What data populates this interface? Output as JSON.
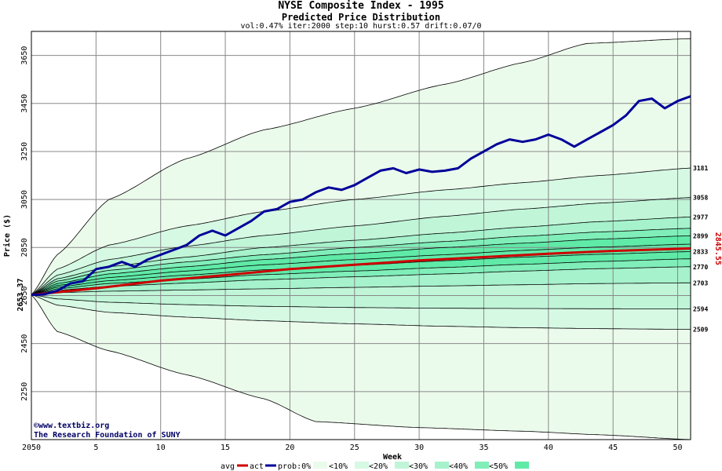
{
  "chart_data": {
    "type": "line",
    "title": "NYSE Composite Index - 1995",
    "subtitle": "Predicted Price Distribution",
    "params": "vol:0.47% iter:2000 step:10 hurst:0.57 drift:0.07/0",
    "xlabel": "Week",
    "ylabel": "Price ($)",
    "xlim": [
      0,
      51
    ],
    "ylim": [
      2050,
      3750
    ],
    "x_ticks": [
      "5",
      "10",
      "15",
      "20",
      "25",
      "30",
      "35",
      "40",
      "45",
      "50"
    ],
    "y_ticks": [
      "2050",
      "2250",
      "2450",
      "2650",
      "2850",
      "3050",
      "3250",
      "3450",
      "3650"
    ],
    "start_label": "2653.37",
    "end_label": "2845.55",
    "grid": true,
    "colors": {
      "avg": "#cc0000",
      "act": "#000099",
      "band_0": "#ebfbeb",
      "band_10": "#d6f9e4",
      "band_20": "#c0f5d8",
      "band_30": "#a6f2cc",
      "band_40": "#80eeb9",
      "band_50": "#5feaa7"
    },
    "percentile_curves": [
      {
        "end": 3720,
        "control": [
          [
            2,
            2820
          ],
          [
            6,
            3050
          ],
          [
            12,
            3220
          ],
          [
            18,
            3340
          ],
          [
            25,
            3430
          ],
          [
            32,
            3530
          ],
          [
            38,
            3620
          ],
          [
            43,
            3700
          ],
          [
            51,
            3720
          ]
        ]
      },
      {
        "end": 3181,
        "control": [
          [
            2,
            2760
          ],
          [
            6,
            2860
          ],
          [
            12,
            2940
          ],
          [
            18,
            3000
          ],
          [
            25,
            3050
          ],
          [
            32,
            3090
          ],
          [
            38,
            3120
          ],
          [
            44,
            3150
          ],
          [
            51,
            3181
          ]
        ]
      },
      {
        "end": 3058,
        "control": [
          [
            2,
            2735
          ],
          [
            6,
            2800
          ],
          [
            12,
            2855
          ],
          [
            18,
            2900
          ],
          [
            25,
            2940
          ],
          [
            32,
            2980
          ],
          [
            38,
            3010
          ],
          [
            44,
            3035
          ],
          [
            51,
            3058
          ]
        ]
      },
      {
        "end": 2977,
        "control": [
          [
            2,
            2720
          ],
          [
            6,
            2770
          ],
          [
            12,
            2810
          ],
          [
            18,
            2850
          ],
          [
            25,
            2880
          ],
          [
            32,
            2910
          ],
          [
            38,
            2935
          ],
          [
            44,
            2958
          ],
          [
            51,
            2977
          ]
        ]
      },
      {
        "end": 2930,
        "control": [
          [
            2,
            2710
          ],
          [
            6,
            2755
          ],
          [
            12,
            2790
          ],
          [
            18,
            2820
          ],
          [
            25,
            2850
          ],
          [
            32,
            2875
          ],
          [
            38,
            2897
          ],
          [
            44,
            2915
          ],
          [
            51,
            2930
          ]
        ]
      },
      {
        "end": 2899,
        "control": [
          [
            2,
            2700
          ],
          [
            6,
            2740
          ],
          [
            12,
            2770
          ],
          [
            18,
            2800
          ],
          [
            25,
            2825
          ],
          [
            32,
            2850
          ],
          [
            38,
            2868
          ],
          [
            44,
            2885
          ],
          [
            51,
            2899
          ]
        ]
      },
      {
        "end": 2864,
        "control": [
          [
            2,
            2692
          ],
          [
            6,
            2725
          ],
          [
            12,
            2752
          ],
          [
            18,
            2778
          ],
          [
            25,
            2800
          ],
          [
            32,
            2820
          ],
          [
            38,
            2838
          ],
          [
            44,
            2852
          ],
          [
            51,
            2864
          ]
        ]
      },
      {
        "end": 2833,
        "control": [
          [
            2,
            2685
          ],
          [
            6,
            2712
          ],
          [
            12,
            2735
          ],
          [
            18,
            2757
          ],
          [
            25,
            2776
          ],
          [
            32,
            2795
          ],
          [
            38,
            2810
          ],
          [
            44,
            2822
          ],
          [
            51,
            2833
          ]
        ]
      },
      {
        "end": 2803,
        "control": [
          [
            2,
            2678
          ],
          [
            6,
            2700
          ],
          [
            12,
            2718
          ],
          [
            18,
            2737
          ],
          [
            25,
            2752
          ],
          [
            32,
            2767
          ],
          [
            38,
            2780
          ],
          [
            44,
            2792
          ],
          [
            51,
            2803
          ]
        ]
      },
      {
        "end": 2770,
        "control": [
          [
            2,
            2672
          ],
          [
            6,
            2688
          ],
          [
            12,
            2702
          ],
          [
            18,
            2716
          ],
          [
            25,
            2728
          ],
          [
            32,
            2740
          ],
          [
            38,
            2752
          ],
          [
            44,
            2762
          ],
          [
            51,
            2770
          ]
        ]
      },
      {
        "end": 2703,
        "control": [
          [
            2,
            2662
          ],
          [
            6,
            2668
          ],
          [
            12,
            2673
          ],
          [
            18,
            2678
          ],
          [
            25,
            2684
          ],
          [
            32,
            2690
          ],
          [
            38,
            2695
          ],
          [
            44,
            2700
          ],
          [
            51,
            2703
          ]
        ]
      },
      {
        "end": 2594,
        "control": [
          [
            2,
            2636
          ],
          [
            6,
            2622
          ],
          [
            12,
            2612
          ],
          [
            18,
            2605
          ],
          [
            25,
            2600
          ],
          [
            32,
            2597
          ],
          [
            38,
            2596
          ],
          [
            44,
            2595
          ],
          [
            51,
            2594
          ]
        ]
      },
      {
        "end": 2509,
        "control": [
          [
            2,
            2610
          ],
          [
            6,
            2580
          ],
          [
            12,
            2560
          ],
          [
            18,
            2545
          ],
          [
            25,
            2532
          ],
          [
            32,
            2522
          ],
          [
            38,
            2516
          ],
          [
            44,
            2512
          ],
          [
            51,
            2509
          ]
        ]
      },
      {
        "end": 2050,
        "control": [
          [
            2,
            2500
          ],
          [
            6,
            2420
          ],
          [
            12,
            2320
          ],
          [
            18,
            2220
          ],
          [
            22,
            2125
          ],
          [
            30,
            2100
          ],
          [
            38,
            2085
          ],
          [
            44,
            2070
          ],
          [
            51,
            2050
          ]
        ]
      }
    ],
    "right_labels": [
      "3181",
      "3058",
      "2977",
      "2899",
      "2833",
      "2770",
      "2703",
      "2594",
      "2509"
    ],
    "series": [
      {
        "name": "avg",
        "points": [
          [
            0,
            2653
          ],
          [
            5,
            2680
          ],
          [
            10,
            2712
          ],
          [
            15,
            2735
          ],
          [
            20,
            2760
          ],
          [
            25,
            2778
          ],
          [
            30,
            2796
          ],
          [
            35,
            2810
          ],
          [
            40,
            2824
          ],
          [
            45,
            2836
          ],
          [
            51,
            2846
          ]
        ]
      },
      {
        "name": "act",
        "points": [
          [
            0,
            2653
          ],
          [
            1,
            2655
          ],
          [
            2,
            2670
          ],
          [
            3,
            2700
          ],
          [
            4,
            2710
          ],
          [
            5,
            2760
          ],
          [
            6,
            2770
          ],
          [
            7,
            2790
          ],
          [
            8,
            2770
          ],
          [
            9,
            2800
          ],
          [
            10,
            2820
          ],
          [
            11,
            2840
          ],
          [
            12,
            2860
          ],
          [
            13,
            2900
          ],
          [
            14,
            2920
          ],
          [
            15,
            2900
          ],
          [
            16,
            2930
          ],
          [
            17,
            2960
          ],
          [
            18,
            3000
          ],
          [
            19,
            3010
          ],
          [
            20,
            3040
          ],
          [
            21,
            3050
          ],
          [
            22,
            3080
          ],
          [
            23,
            3100
          ],
          [
            24,
            3090
          ],
          [
            25,
            3110
          ],
          [
            26,
            3140
          ],
          [
            27,
            3170
          ],
          [
            28,
            3180
          ],
          [
            29,
            3160
          ],
          [
            30,
            3175
          ],
          [
            31,
            3165
          ],
          [
            32,
            3170
          ],
          [
            33,
            3180
          ],
          [
            34,
            3220
          ],
          [
            35,
            3250
          ],
          [
            36,
            3280
          ],
          [
            37,
            3300
          ],
          [
            38,
            3290
          ],
          [
            39,
            3300
          ],
          [
            40,
            3320
          ],
          [
            41,
            3300
          ],
          [
            42,
            3270
          ],
          [
            43,
            3300
          ],
          [
            44,
            3330
          ],
          [
            45,
            3360
          ],
          [
            46,
            3400
          ],
          [
            47,
            3460
          ],
          [
            48,
            3470
          ],
          [
            49,
            3430
          ],
          [
            50,
            3460
          ],
          [
            51,
            3480
          ]
        ]
      }
    ]
  },
  "legend": {
    "label": "avg",
    "act": "act",
    "prob": "prob:0%",
    "items": [
      "<10%",
      "<20%",
      "<30%",
      "<40%",
      "<50%"
    ]
  },
  "watermark": {
    "url": "www.textbiz.org",
    "org": "The Research Foundation of SUNY"
  }
}
